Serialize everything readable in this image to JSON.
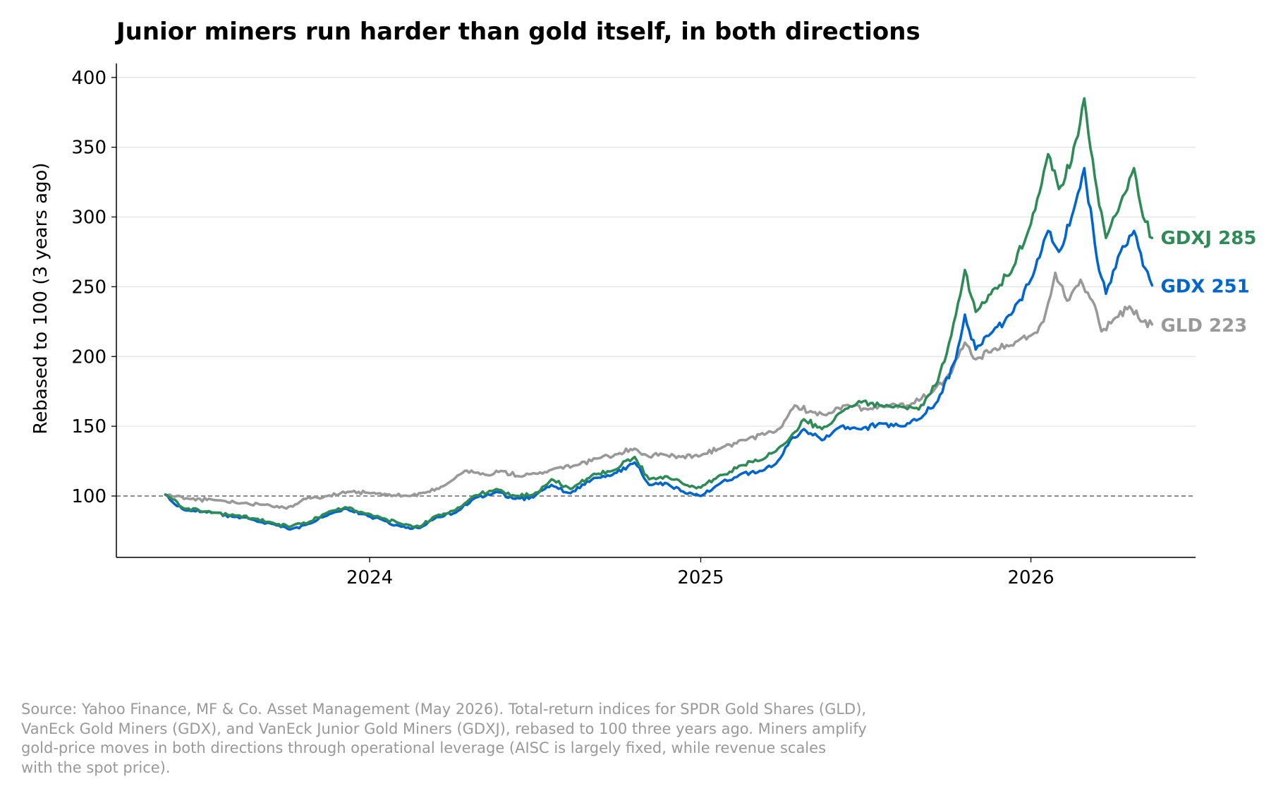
{
  "chart_data": {
    "type": "line",
    "title": "Junior miners run harder than gold itself, in both directions",
    "xlabel": "",
    "ylabel": "Rebased to 100 (3 years ago)",
    "x_ticks": [
      "2024",
      "2025",
      "2026"
    ],
    "y_ticks": [
      100,
      150,
      200,
      250,
      300,
      350,
      400
    ],
    "ylim": [
      56,
      410
    ],
    "xlim": [
      "2023-03-27",
      "2026-07-02"
    ],
    "grid": "horizontal",
    "baseline": 100,
    "legend": "none (direct labels at line ends)",
    "series": [
      {
        "name": "GLD",
        "end_label": "GLD 223",
        "color": "#999999",
        "points": [
          [
            "2023-05-20",
            101
          ],
          [
            "2023-06-15",
            98
          ],
          [
            "2023-07-15",
            97
          ],
          [
            "2023-08-15",
            95
          ],
          [
            "2023-09-10",
            94
          ],
          [
            "2023-10-01",
            91
          ],
          [
            "2023-10-20",
            98
          ],
          [
            "2023-11-15",
            100
          ],
          [
            "2023-12-10",
            103
          ],
          [
            "2024-01-01",
            102
          ],
          [
            "2024-01-20",
            101
          ],
          [
            "2024-02-15",
            100
          ],
          [
            "2024-03-05",
            103
          ],
          [
            "2024-03-25",
            108
          ],
          [
            "2024-04-15",
            118
          ],
          [
            "2024-05-10",
            115
          ],
          [
            "2024-05-25",
            118
          ],
          [
            "2024-06-15",
            114
          ],
          [
            "2024-07-05",
            116
          ],
          [
            "2024-07-25",
            120
          ],
          [
            "2024-08-15",
            122
          ],
          [
            "2024-09-10",
            127
          ],
          [
            "2024-10-01",
            130
          ],
          [
            "2024-10-20",
            134
          ],
          [
            "2024-11-05",
            128
          ],
          [
            "2024-11-20",
            130
          ],
          [
            "2024-12-10",
            128
          ],
          [
            "2025-01-01",
            129
          ],
          [
            "2025-01-25",
            135
          ],
          [
            "2025-02-20",
            140
          ],
          [
            "2025-03-15",
            145
          ],
          [
            "2025-04-01",
            150
          ],
          [
            "2025-04-15",
            165
          ],
          [
            "2025-05-05",
            160
          ],
          [
            "2025-05-20",
            158
          ],
          [
            "2025-06-10",
            165
          ],
          [
            "2025-07-05",
            162
          ],
          [
            "2025-07-25",
            164
          ],
          [
            "2025-08-20",
            165
          ],
          [
            "2025-09-15",
            175
          ],
          [
            "2025-10-05",
            188
          ],
          [
            "2025-10-20",
            210
          ],
          [
            "2025-11-01",
            198
          ],
          [
            "2025-11-20",
            205
          ],
          [
            "2025-12-10",
            208
          ],
          [
            "2026-01-01",
            215
          ],
          [
            "2026-01-15",
            225
          ],
          [
            "2026-01-28",
            260
          ],
          [
            "2026-02-10",
            240
          ],
          [
            "2026-02-25",
            255
          ],
          [
            "2026-03-10",
            240
          ],
          [
            "2026-03-20",
            218
          ],
          [
            "2026-04-05",
            228
          ],
          [
            "2026-04-20",
            236
          ],
          [
            "2026-05-05",
            225
          ],
          [
            "2026-05-15",
            223
          ]
        ]
      },
      {
        "name": "GDX",
        "end_label": "GDX 251",
        "color": "#0066cc",
        "points": [
          [
            "2023-05-20",
            101
          ],
          [
            "2023-06-10",
            90
          ],
          [
            "2023-07-15",
            88
          ],
          [
            "2023-08-05",
            85
          ],
          [
            "2023-08-25",
            83
          ],
          [
            "2023-09-15",
            80
          ],
          [
            "2023-10-05",
            76
          ],
          [
            "2023-10-25",
            80
          ],
          [
            "2023-11-15",
            86
          ],
          [
            "2023-12-05",
            91
          ],
          [
            "2023-12-25",
            87
          ],
          [
            "2024-01-15",
            83
          ],
          [
            "2024-02-05",
            78
          ],
          [
            "2024-02-25",
            77
          ],
          [
            "2024-03-15",
            85
          ],
          [
            "2024-04-05",
            88
          ],
          [
            "2024-04-25",
            98
          ],
          [
            "2024-05-20",
            103
          ],
          [
            "2024-06-10",
            98
          ],
          [
            "2024-06-30",
            99
          ],
          [
            "2024-07-20",
            108
          ],
          [
            "2024-08-10",
            102
          ],
          [
            "2024-09-05",
            113
          ],
          [
            "2024-09-25",
            115
          ],
          [
            "2024-10-20",
            124
          ],
          [
            "2024-11-05",
            108
          ],
          [
            "2024-11-25",
            109
          ],
          [
            "2024-12-15",
            102
          ],
          [
            "2025-01-01",
            100
          ],
          [
            "2025-01-20",
            108
          ],
          [
            "2025-02-15",
            116
          ],
          [
            "2025-03-10",
            118
          ],
          [
            "2025-03-25",
            123
          ],
          [
            "2025-04-10",
            140
          ],
          [
            "2025-04-25",
            148
          ],
          [
            "2025-05-15",
            140
          ],
          [
            "2025-06-05",
            150
          ],
          [
            "2025-06-25",
            148
          ],
          [
            "2025-07-20",
            152
          ],
          [
            "2025-08-10",
            150
          ],
          [
            "2025-08-30",
            155
          ],
          [
            "2025-09-20",
            168
          ],
          [
            "2025-10-10",
            198
          ],
          [
            "2025-10-20",
            230
          ],
          [
            "2025-11-01",
            205
          ],
          [
            "2025-11-20",
            218
          ],
          [
            "2025-12-10",
            230
          ],
          [
            "2026-01-01",
            255
          ],
          [
            "2026-01-20",
            290
          ],
          [
            "2026-02-01",
            275
          ],
          [
            "2026-02-15",
            300
          ],
          [
            "2026-03-01",
            335
          ],
          [
            "2026-03-15",
            270
          ],
          [
            "2026-03-25",
            245
          ],
          [
            "2026-04-10",
            275
          ],
          [
            "2026-04-25",
            290
          ],
          [
            "2026-05-05",
            265
          ],
          [
            "2026-05-15",
            251
          ]
        ]
      },
      {
        "name": "GDXJ",
        "end_label": "GDXJ 285",
        "color": "#2e8b57",
        "points": [
          [
            "2023-05-20",
            101
          ],
          [
            "2023-06-10",
            91
          ],
          [
            "2023-07-15",
            88
          ],
          [
            "2023-08-05",
            86
          ],
          [
            "2023-08-25",
            84
          ],
          [
            "2023-09-15",
            81
          ],
          [
            "2023-10-05",
            78
          ],
          [
            "2023-10-25",
            81
          ],
          [
            "2023-11-15",
            88
          ],
          [
            "2023-12-05",
            92
          ],
          [
            "2023-12-25",
            88
          ],
          [
            "2024-01-15",
            84
          ],
          [
            "2024-02-05",
            80
          ],
          [
            "2024-02-25",
            78
          ],
          [
            "2024-03-15",
            86
          ],
          [
            "2024-04-05",
            90
          ],
          [
            "2024-04-25",
            100
          ],
          [
            "2024-05-20",
            105
          ],
          [
            "2024-06-10",
            100
          ],
          [
            "2024-06-30",
            101
          ],
          [
            "2024-07-20",
            112
          ],
          [
            "2024-08-10",
            105
          ],
          [
            "2024-09-05",
            116
          ],
          [
            "2024-09-25",
            118
          ],
          [
            "2024-10-20",
            128
          ],
          [
            "2024-11-05",
            112
          ],
          [
            "2024-11-25",
            114
          ],
          [
            "2024-12-15",
            108
          ],
          [
            "2025-01-01",
            106
          ],
          [
            "2025-01-20",
            114
          ],
          [
            "2025-02-15",
            122
          ],
          [
            "2025-03-10",
            126
          ],
          [
            "2025-03-25",
            132
          ],
          [
            "2025-04-10",
            142
          ],
          [
            "2025-04-25",
            155
          ],
          [
            "2025-05-15",
            148
          ],
          [
            "2025-06-05",
            160
          ],
          [
            "2025-06-25",
            168
          ],
          [
            "2025-07-20",
            165
          ],
          [
            "2025-08-10",
            164
          ],
          [
            "2025-08-30",
            162
          ],
          [
            "2025-09-20",
            182
          ],
          [
            "2025-10-05",
            215
          ],
          [
            "2025-10-20",
            262
          ],
          [
            "2025-11-01",
            232
          ],
          [
            "2025-11-20",
            248
          ],
          [
            "2025-12-10",
            260
          ],
          [
            "2026-01-01",
            295
          ],
          [
            "2026-01-20",
            345
          ],
          [
            "2026-02-01",
            320
          ],
          [
            "2026-02-15",
            340
          ],
          [
            "2026-03-01",
            385
          ],
          [
            "2026-03-15",
            320
          ],
          [
            "2026-03-25",
            285
          ],
          [
            "2026-04-10",
            310
          ],
          [
            "2026-04-25",
            335
          ],
          [
            "2026-05-05",
            300
          ],
          [
            "2026-05-15",
            285
          ]
        ]
      }
    ]
  },
  "footnote": {
    "lines": [
      "Source: Yahoo Finance, MF & Co. Asset Management (May 2026). Total-return indices for SPDR Gold Shares (GLD),",
      "VanEck Gold Miners (GDX), and VanEck Junior Gold Miners (GDXJ), rebased to 100 three years ago. Miners amplify",
      "gold-price moves in both directions through operational leverage (AISC is largely fixed, while revenue scales",
      "with the spot price)."
    ]
  }
}
